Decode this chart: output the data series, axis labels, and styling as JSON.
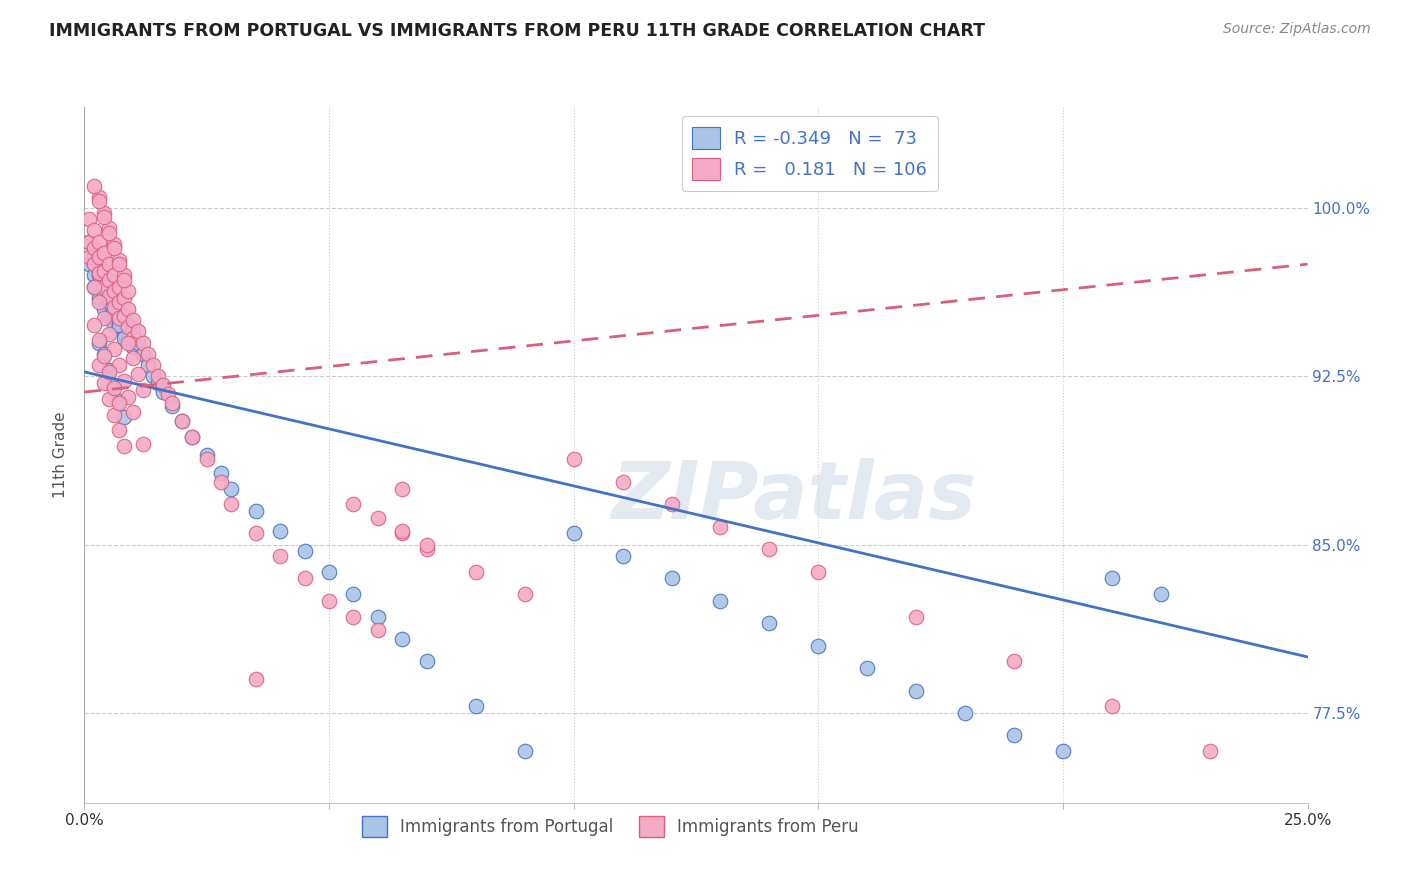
{
  "title": "IMMIGRANTS FROM PORTUGAL VS IMMIGRANTS FROM PERU 11TH GRADE CORRELATION CHART",
  "source": "Source: ZipAtlas.com",
  "ylabel": "11th Grade",
  "xlim": [
    0.0,
    0.25
  ],
  "ylim": [
    0.735,
    1.045
  ],
  "legend_R_portugal": "-0.349",
  "legend_N_portugal": "73",
  "legend_R_peru": "0.181",
  "legend_N_peru": "106",
  "color_portugal": "#aac4e8",
  "color_peru": "#f5aac8",
  "line_color_portugal": "#4472c4",
  "line_color_peru": "#d9607a",
  "background_color": "#ffffff",
  "watermark": "ZIPatlas",
  "ytick_vals": [
    0.775,
    0.85,
    0.925,
    1.0
  ],
  "ytick_labels": [
    "77.5%",
    "85.0%",
    "92.5%",
    "100.0%"
  ],
  "xtick_vals": [
    0.0,
    0.05,
    0.1,
    0.15,
    0.2,
    0.25
  ],
  "xtick_labels": [
    "0.0%",
    "",
    "",
    "",
    "",
    "25.0%"
  ],
  "portugal_x": [
    0.001,
    0.001,
    0.002,
    0.002,
    0.002,
    0.003,
    0.003,
    0.003,
    0.004,
    0.004,
    0.004,
    0.005,
    0.005,
    0.005,
    0.006,
    0.006,
    0.006,
    0.007,
    0.007,
    0.008,
    0.008,
    0.009,
    0.009,
    0.01,
    0.01,
    0.011,
    0.012,
    0.013,
    0.014,
    0.015,
    0.016,
    0.018,
    0.02,
    0.022,
    0.025,
    0.028,
    0.03,
    0.035,
    0.04,
    0.045,
    0.05,
    0.055,
    0.06,
    0.065,
    0.07,
    0.08,
    0.09,
    0.1,
    0.11,
    0.12,
    0.13,
    0.14,
    0.15,
    0.16,
    0.17,
    0.18,
    0.19,
    0.2,
    0.21,
    0.22,
    0.003,
    0.004,
    0.005,
    0.006,
    0.007,
    0.008,
    0.002,
    0.003,
    0.004,
    0.005,
    0.006,
    0.007,
    0.008
  ],
  "portugal_y": [
    0.985,
    0.975,
    0.98,
    0.97,
    0.965,
    0.975,
    0.97,
    0.96,
    0.968,
    0.962,
    0.955,
    0.965,
    0.958,
    0.952,
    0.96,
    0.953,
    0.948,
    0.955,
    0.948,
    0.952,
    0.944,
    0.948,
    0.942,
    0.945,
    0.938,
    0.94,
    0.935,
    0.93,
    0.925,
    0.922,
    0.918,
    0.912,
    0.905,
    0.898,
    0.89,
    0.882,
    0.875,
    0.865,
    0.856,
    0.847,
    0.838,
    0.828,
    0.818,
    0.808,
    0.798,
    0.778,
    0.758,
    0.855,
    0.845,
    0.835,
    0.825,
    0.815,
    0.805,
    0.795,
    0.785,
    0.775,
    0.765,
    0.758,
    0.835,
    0.828,
    0.94,
    0.935,
    0.928,
    0.921,
    0.914,
    0.907,
    0.978,
    0.972,
    0.966,
    0.96,
    0.954,
    0.948,
    0.942
  ],
  "peru_x": [
    0.001,
    0.001,
    0.001,
    0.002,
    0.002,
    0.002,
    0.003,
    0.003,
    0.003,
    0.004,
    0.004,
    0.004,
    0.005,
    0.005,
    0.005,
    0.006,
    0.006,
    0.006,
    0.007,
    0.007,
    0.007,
    0.008,
    0.008,
    0.009,
    0.009,
    0.01,
    0.01,
    0.011,
    0.012,
    0.013,
    0.014,
    0.015,
    0.016,
    0.017,
    0.018,
    0.02,
    0.022,
    0.025,
    0.028,
    0.03,
    0.035,
    0.04,
    0.045,
    0.05,
    0.055,
    0.06,
    0.065,
    0.07,
    0.08,
    0.09,
    0.1,
    0.11,
    0.12,
    0.13,
    0.14,
    0.15,
    0.17,
    0.19,
    0.21,
    0.23,
    0.002,
    0.003,
    0.004,
    0.005,
    0.006,
    0.007,
    0.008,
    0.009,
    0.01,
    0.012,
    0.003,
    0.004,
    0.005,
    0.006,
    0.007,
    0.008,
    0.009,
    0.002,
    0.003,
    0.004,
    0.005,
    0.006,
    0.007,
    0.008,
    0.003,
    0.004,
    0.005,
    0.006,
    0.007,
    0.008,
    0.002,
    0.003,
    0.004,
    0.005,
    0.006,
    0.007,
    0.009,
    0.01,
    0.011,
    0.012,
    0.035,
    0.065,
    0.055,
    0.06,
    0.065,
    0.07
  ],
  "peru_y": [
    0.995,
    0.985,
    0.978,
    0.99,
    0.982,
    0.975,
    0.985,
    0.978,
    0.971,
    0.98,
    0.972,
    0.965,
    0.975,
    0.968,
    0.961,
    0.97,
    0.963,
    0.956,
    0.965,
    0.958,
    0.951,
    0.96,
    0.952,
    0.955,
    0.947,
    0.95,
    0.942,
    0.945,
    0.94,
    0.935,
    0.93,
    0.925,
    0.921,
    0.917,
    0.913,
    0.905,
    0.898,
    0.888,
    0.878,
    0.868,
    0.855,
    0.845,
    0.835,
    0.825,
    0.818,
    0.812,
    0.855,
    0.848,
    0.838,
    0.828,
    0.888,
    0.878,
    0.868,
    0.858,
    0.848,
    0.838,
    0.818,
    0.798,
    0.778,
    0.758,
    0.965,
    0.958,
    0.951,
    0.944,
    0.937,
    0.93,
    0.923,
    0.916,
    0.909,
    0.895,
    1.005,
    0.998,
    0.991,
    0.984,
    0.977,
    0.97,
    0.963,
    1.01,
    1.003,
    0.996,
    0.989,
    0.982,
    0.975,
    0.968,
    0.93,
    0.922,
    0.915,
    0.908,
    0.901,
    0.894,
    0.948,
    0.941,
    0.934,
    0.927,
    0.92,
    0.913,
    0.94,
    0.933,
    0.926,
    0.919,
    0.79,
    0.875,
    0.868,
    0.862,
    0.856,
    0.85
  ]
}
